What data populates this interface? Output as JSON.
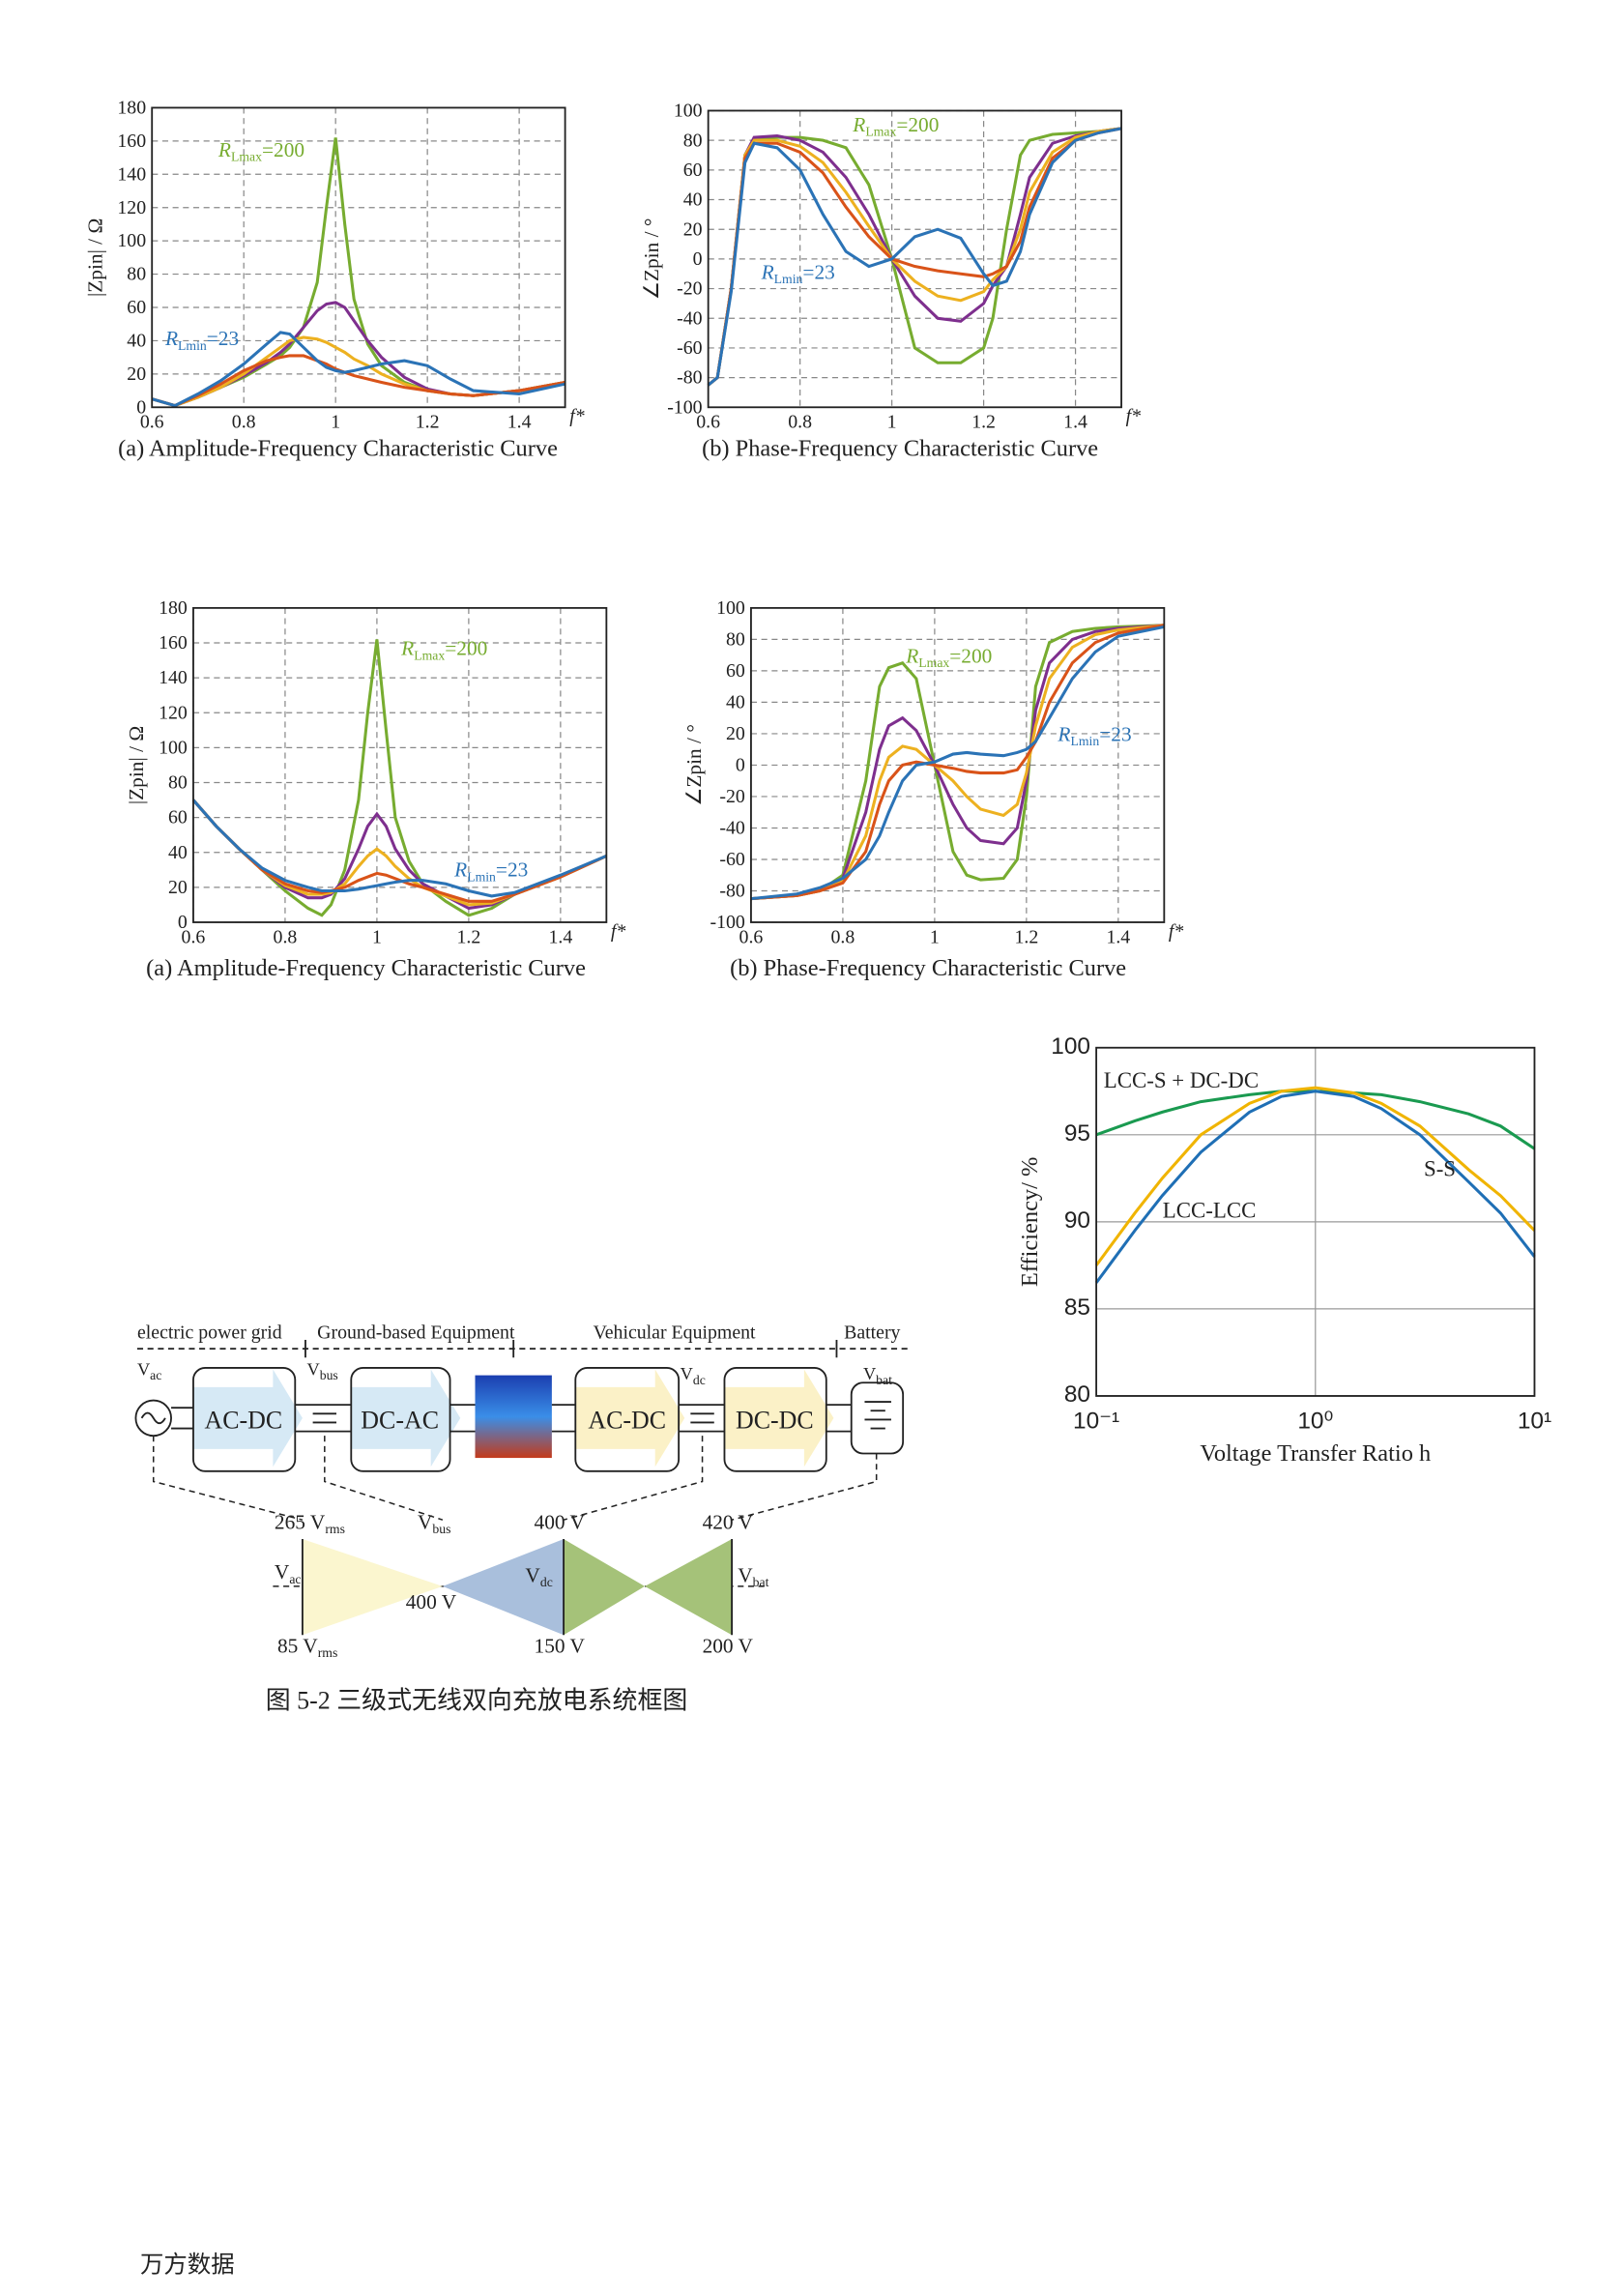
{
  "chart_data": [
    {
      "type": "line",
      "caption": "(a) Amplitude-Frequency Characteristic Curve",
      "xlabel": "f*",
      "ylabel": "|Zpin| / Ω",
      "xlim": [
        0.6,
        1.5
      ],
      "ylim": [
        0,
        180
      ],
      "xticks": [
        0.6,
        0.8,
        1,
        1.2,
        1.4
      ],
      "yticks": [
        0,
        20,
        40,
        60,
        80,
        100,
        120,
        140,
        160,
        180
      ],
      "grid": "dashed",
      "x": [
        0.6,
        0.65,
        0.7,
        0.75,
        0.8,
        0.85,
        0.88,
        0.9,
        0.93,
        0.96,
        0.98,
        1.0,
        1.02,
        1.04,
        1.07,
        1.1,
        1.15,
        1.2,
        1.25,
        1.3,
        1.4,
        1.5
      ],
      "series": [
        {
          "color": "#77ac30",
          "values": [
            5,
            1,
            6,
            12,
            18,
            26,
            31,
            36,
            48,
            75,
            120,
            162,
            110,
            65,
            38,
            25,
            15,
            10,
            8,
            7,
            10,
            15
          ]
        },
        {
          "color": "#7e2f8e",
          "values": [
            5,
            1,
            6,
            12,
            19,
            27,
            33,
            38,
            48,
            58,
            62,
            63,
            60,
            52,
            40,
            30,
            18,
            11,
            8,
            7,
            10,
            15
          ]
        },
        {
          "color": "#edb120",
          "values": [
            5,
            1,
            6,
            12,
            20,
            30,
            36,
            40,
            42,
            41,
            39,
            36,
            33,
            29,
            25,
            20,
            14,
            10,
            8,
            7,
            10,
            15
          ]
        },
        {
          "color": "#d95319",
          "values": [
            5,
            1,
            7,
            14,
            22,
            28,
            30,
            31,
            31,
            28,
            26,
            23,
            21,
            19,
            17,
            15,
            12,
            10,
            8,
            7,
            10,
            15
          ]
        },
        {
          "color": "#2b73b6",
          "values": [
            5,
            1,
            8,
            16,
            26,
            38,
            45,
            44,
            36,
            28,
            24,
            22,
            21,
            22,
            24,
            26,
            28,
            25,
            17,
            10,
            8,
            14
          ]
        }
      ],
      "annotations": [
        {
          "text": "R",
          "sub": "Lmax",
          "suffix": "=200",
          "color": "#77ac30"
        },
        {
          "text": "R",
          "sub": "Lmin",
          "suffix": "=23",
          "color": "#2b73b6"
        }
      ]
    },
    {
      "type": "line",
      "caption": "(b) Phase-Frequency Characteristic Curve",
      "xlabel": "f*",
      "ylabel": "∠Zpin / °",
      "xlim": [
        0.6,
        1.5
      ],
      "ylim": [
        -100,
        100
      ],
      "xticks": [
        0.6,
        0.8,
        1,
        1.2,
        1.4
      ],
      "yticks": [
        -100,
        -80,
        -60,
        -40,
        -20,
        0,
        20,
        40,
        60,
        80,
        100
      ],
      "grid": "dashed",
      "x": [
        0.6,
        0.62,
        0.65,
        0.68,
        0.7,
        0.75,
        0.8,
        0.85,
        0.9,
        0.95,
        1.0,
        1.05,
        1.1,
        1.15,
        1.2,
        1.22,
        1.25,
        1.28,
        1.3,
        1.35,
        1.4,
        1.45,
        1.5
      ],
      "series": [
        {
          "color": "#77ac30",
          "values": [
            -85,
            -80,
            -20,
            70,
            80,
            82,
            82,
            80,
            75,
            50,
            0,
            -60,
            -70,
            -70,
            -60,
            -40,
            20,
            70,
            80,
            84,
            85,
            86,
            88
          ]
        },
        {
          "color": "#7e2f8e",
          "values": [
            -85,
            -80,
            -20,
            70,
            82,
            83,
            80,
            72,
            55,
            30,
            0,
            -25,
            -40,
            -42,
            -30,
            -18,
            -5,
            30,
            55,
            78,
            83,
            86,
            88
          ]
        },
        {
          "color": "#edb120",
          "values": [
            -85,
            -80,
            -20,
            70,
            80,
            80,
            76,
            65,
            45,
            22,
            0,
            -15,
            -25,
            -28,
            -22,
            -14,
            -5,
            20,
            45,
            72,
            82,
            86,
            88
          ]
        },
        {
          "color": "#d95319",
          "values": [
            -85,
            -80,
            -20,
            68,
            78,
            78,
            72,
            58,
            35,
            15,
            0,
            -5,
            -8,
            -10,
            -12,
            -10,
            -5,
            12,
            35,
            68,
            80,
            85,
            88
          ]
        },
        {
          "color": "#2b73b6",
          "values": [
            -85,
            -80,
            -22,
            65,
            78,
            75,
            60,
            30,
            5,
            -5,
            0,
            15,
            20,
            14,
            -10,
            -18,
            -15,
            5,
            30,
            65,
            80,
            85,
            88
          ]
        }
      ],
      "annotations": [
        {
          "text": "R",
          "sub": "Lmax",
          "suffix": "=200",
          "color": "#77ac30"
        },
        {
          "text": "R",
          "sub": "Lmin",
          "suffix": "=23",
          "color": "#2b73b6"
        }
      ]
    },
    {
      "type": "line",
      "caption": "(a) Amplitude-Frequency Characteristic Curve",
      "xlabel": "f*",
      "ylabel": "|Zpin| / Ω",
      "xlim": [
        0.6,
        1.5
      ],
      "ylim": [
        0,
        180
      ],
      "xticks": [
        0.6,
        0.8,
        1,
        1.2,
        1.4
      ],
      "yticks": [
        0,
        20,
        40,
        60,
        80,
        100,
        120,
        140,
        160,
        180
      ],
      "grid": "dashed",
      "x": [
        0.6,
        0.65,
        0.7,
        0.75,
        0.8,
        0.85,
        0.88,
        0.9,
        0.93,
        0.96,
        0.98,
        1.0,
        1.02,
        1.04,
        1.07,
        1.1,
        1.15,
        1.2,
        1.25,
        1.3,
        1.4,
        1.5
      ],
      "series": [
        {
          "color": "#77ac30",
          "values": [
            70,
            55,
            42,
            30,
            18,
            8,
            4,
            10,
            30,
            70,
            120,
            162,
            110,
            60,
            35,
            22,
            12,
            4,
            8,
            16,
            26,
            38
          ]
        },
        {
          "color": "#7e2f8e",
          "values": [
            70,
            55,
            42,
            30,
            20,
            14,
            14,
            16,
            25,
            42,
            55,
            62,
            55,
            42,
            30,
            22,
            15,
            8,
            10,
            16,
            26,
            38
          ]
        },
        {
          "color": "#edb120",
          "values": [
            70,
            55,
            42,
            30,
            21,
            16,
            16,
            17,
            22,
            32,
            38,
            42,
            38,
            32,
            25,
            20,
            15,
            10,
            11,
            16,
            26,
            38
          ]
        },
        {
          "color": "#d95319",
          "values": [
            70,
            55,
            42,
            30,
            22,
            18,
            17,
            18,
            20,
            24,
            26,
            28,
            27,
            25,
            22,
            20,
            16,
            12,
            12,
            16,
            26,
            38
          ]
        },
        {
          "color": "#2b73b6",
          "values": [
            70,
            55,
            42,
            31,
            24,
            20,
            18,
            18,
            18,
            19,
            20,
            21,
            22,
            23,
            24,
            24,
            22,
            18,
            15,
            17,
            27,
            38
          ]
        }
      ],
      "annotations": [
        {
          "text": "R",
          "sub": "Lmax",
          "suffix": "=200",
          "color": "#77ac30"
        },
        {
          "text": "R",
          "sub": "Lmin",
          "suffix": "=23",
          "color": "#2b73b6"
        }
      ]
    },
    {
      "type": "line",
      "caption": "(b) Phase-Frequency Characteristic Curve",
      "xlabel": "f*",
      "ylabel": "∠Zpin / °",
      "xlim": [
        0.6,
        1.5
      ],
      "ylim": [
        -100,
        100
      ],
      "xticks": [
        0.6,
        0.8,
        1,
        1.2,
        1.4
      ],
      "yticks": [
        -100,
        -80,
        -60,
        -40,
        -20,
        0,
        20,
        40,
        60,
        80,
        100
      ],
      "grid": "dashed",
      "x": [
        0.6,
        0.7,
        0.75,
        0.8,
        0.85,
        0.88,
        0.9,
        0.93,
        0.96,
        1.0,
        1.04,
        1.07,
        1.1,
        1.15,
        1.18,
        1.2,
        1.22,
        1.25,
        1.3,
        1.35,
        1.4,
        1.5
      ],
      "series": [
        {
          "color": "#77ac30",
          "values": [
            -85,
            -83,
            -80,
            -70,
            -10,
            50,
            62,
            65,
            55,
            0,
            -55,
            -70,
            -73,
            -72,
            -60,
            -20,
            50,
            78,
            85,
            87,
            88,
            89
          ]
        },
        {
          "color": "#7e2f8e",
          "values": [
            -85,
            -83,
            -80,
            -72,
            -30,
            10,
            25,
            30,
            22,
            0,
            -25,
            -40,
            -48,
            -50,
            -40,
            -10,
            35,
            65,
            80,
            85,
            87,
            89
          ]
        },
        {
          "color": "#edb120",
          "values": [
            -85,
            -83,
            -80,
            -74,
            -45,
            -10,
            5,
            12,
            10,
            0,
            -10,
            -20,
            -28,
            -32,
            -25,
            -5,
            25,
            55,
            75,
            83,
            86,
            89
          ]
        },
        {
          "color": "#d95319",
          "values": [
            -85,
            -83,
            -80,
            -75,
            -55,
            -25,
            -10,
            0,
            2,
            0,
            -2,
            -4,
            -5,
            -5,
            -3,
            5,
            15,
            40,
            65,
            78,
            84,
            89
          ]
        },
        {
          "color": "#2b73b6",
          "values": [
            -85,
            -82,
            -78,
            -72,
            -60,
            -45,
            -30,
            -10,
            0,
            2,
            7,
            8,
            7,
            6,
            8,
            10,
            15,
            30,
            55,
            72,
            82,
            88
          ]
        }
      ],
      "annotations": [
        {
          "text": "R",
          "sub": "Lmax",
          "suffix": "=200",
          "color": "#77ac30"
        },
        {
          "text": "R",
          "sub": "Lmin",
          "suffix": "=23",
          "color": "#2b73b6"
        }
      ]
    },
    {
      "type": "line",
      "xlabel": "Voltage Transfer Ratio  h",
      "ylabel": "Efficiency/ %",
      "xscale": "log",
      "xlim": [
        0.1,
        10
      ],
      "ylim": [
        80,
        100
      ],
      "xticks": [
        {
          "value": 0.1,
          "label": "10⁻¹"
        },
        {
          "value": 1,
          "label": "10⁰"
        },
        {
          "value": 10,
          "label": "10¹"
        }
      ],
      "yticks": [
        80,
        85,
        90,
        95,
        100
      ],
      "grid": "solid",
      "x": [
        0.1,
        0.15,
        0.2,
        0.3,
        0.5,
        0.7,
        1,
        1.5,
        2,
        3,
        5,
        7,
        10
      ],
      "series": [
        {
          "name": "LCC-S + DC-DC",
          "color": "#1a9a50",
          "values": [
            95,
            95.8,
            96.3,
            96.9,
            97.3,
            97.5,
            97.5,
            97.4,
            97.3,
            96.9,
            96.2,
            95.5,
            94.2
          ]
        },
        {
          "name": "S-S",
          "color": "#1f6fb5",
          "values": [
            86.5,
            89.5,
            91.5,
            94,
            96.3,
            97.2,
            97.5,
            97.2,
            96.5,
            95,
            92.3,
            90.5,
            88
          ]
        },
        {
          "name": "LCC-LCC",
          "color": "#f0b400",
          "values": [
            87.5,
            90.5,
            92.5,
            95,
            96.8,
            97.5,
            97.7,
            97.4,
            96.8,
            95.5,
            93,
            91.5,
            89.5
          ]
        }
      ]
    }
  ],
  "diagram": {
    "sections": [
      "electric power grid",
      "Ground-based Equipment",
      "Vehicular Equipment",
      "Battery"
    ],
    "blocks": [
      "AC-DC",
      "DC-AC",
      "AC-DC",
      "DC-DC"
    ],
    "nodes": [
      {
        "main": "V",
        "sub": "ac"
      },
      {
        "main": "V",
        "sub": "bus"
      },
      {
        "main": "V",
        "sub": "dc"
      },
      {
        "main": "V",
        "sub": "bat"
      }
    ],
    "levels": [
      {
        "main": "265 V",
        "sub": "rms"
      },
      {
        "main": "V",
        "sub": "bus"
      },
      {
        "main": "400 V"
      },
      {
        "main": "420 V"
      },
      {
        "main": "V",
        "sub": "ac"
      },
      {
        "main": "400 V"
      },
      {
        "main": "V",
        "sub": "dc"
      },
      {
        "main": "V",
        "sub": "bat"
      },
      {
        "main": "85 V",
        "sub": "rms"
      },
      {
        "main": "150 V"
      },
      {
        "main": "200 V"
      }
    ]
  },
  "caption": "图 5-2  三级式无线双向充放电系统框图",
  "footer": "万方数据"
}
